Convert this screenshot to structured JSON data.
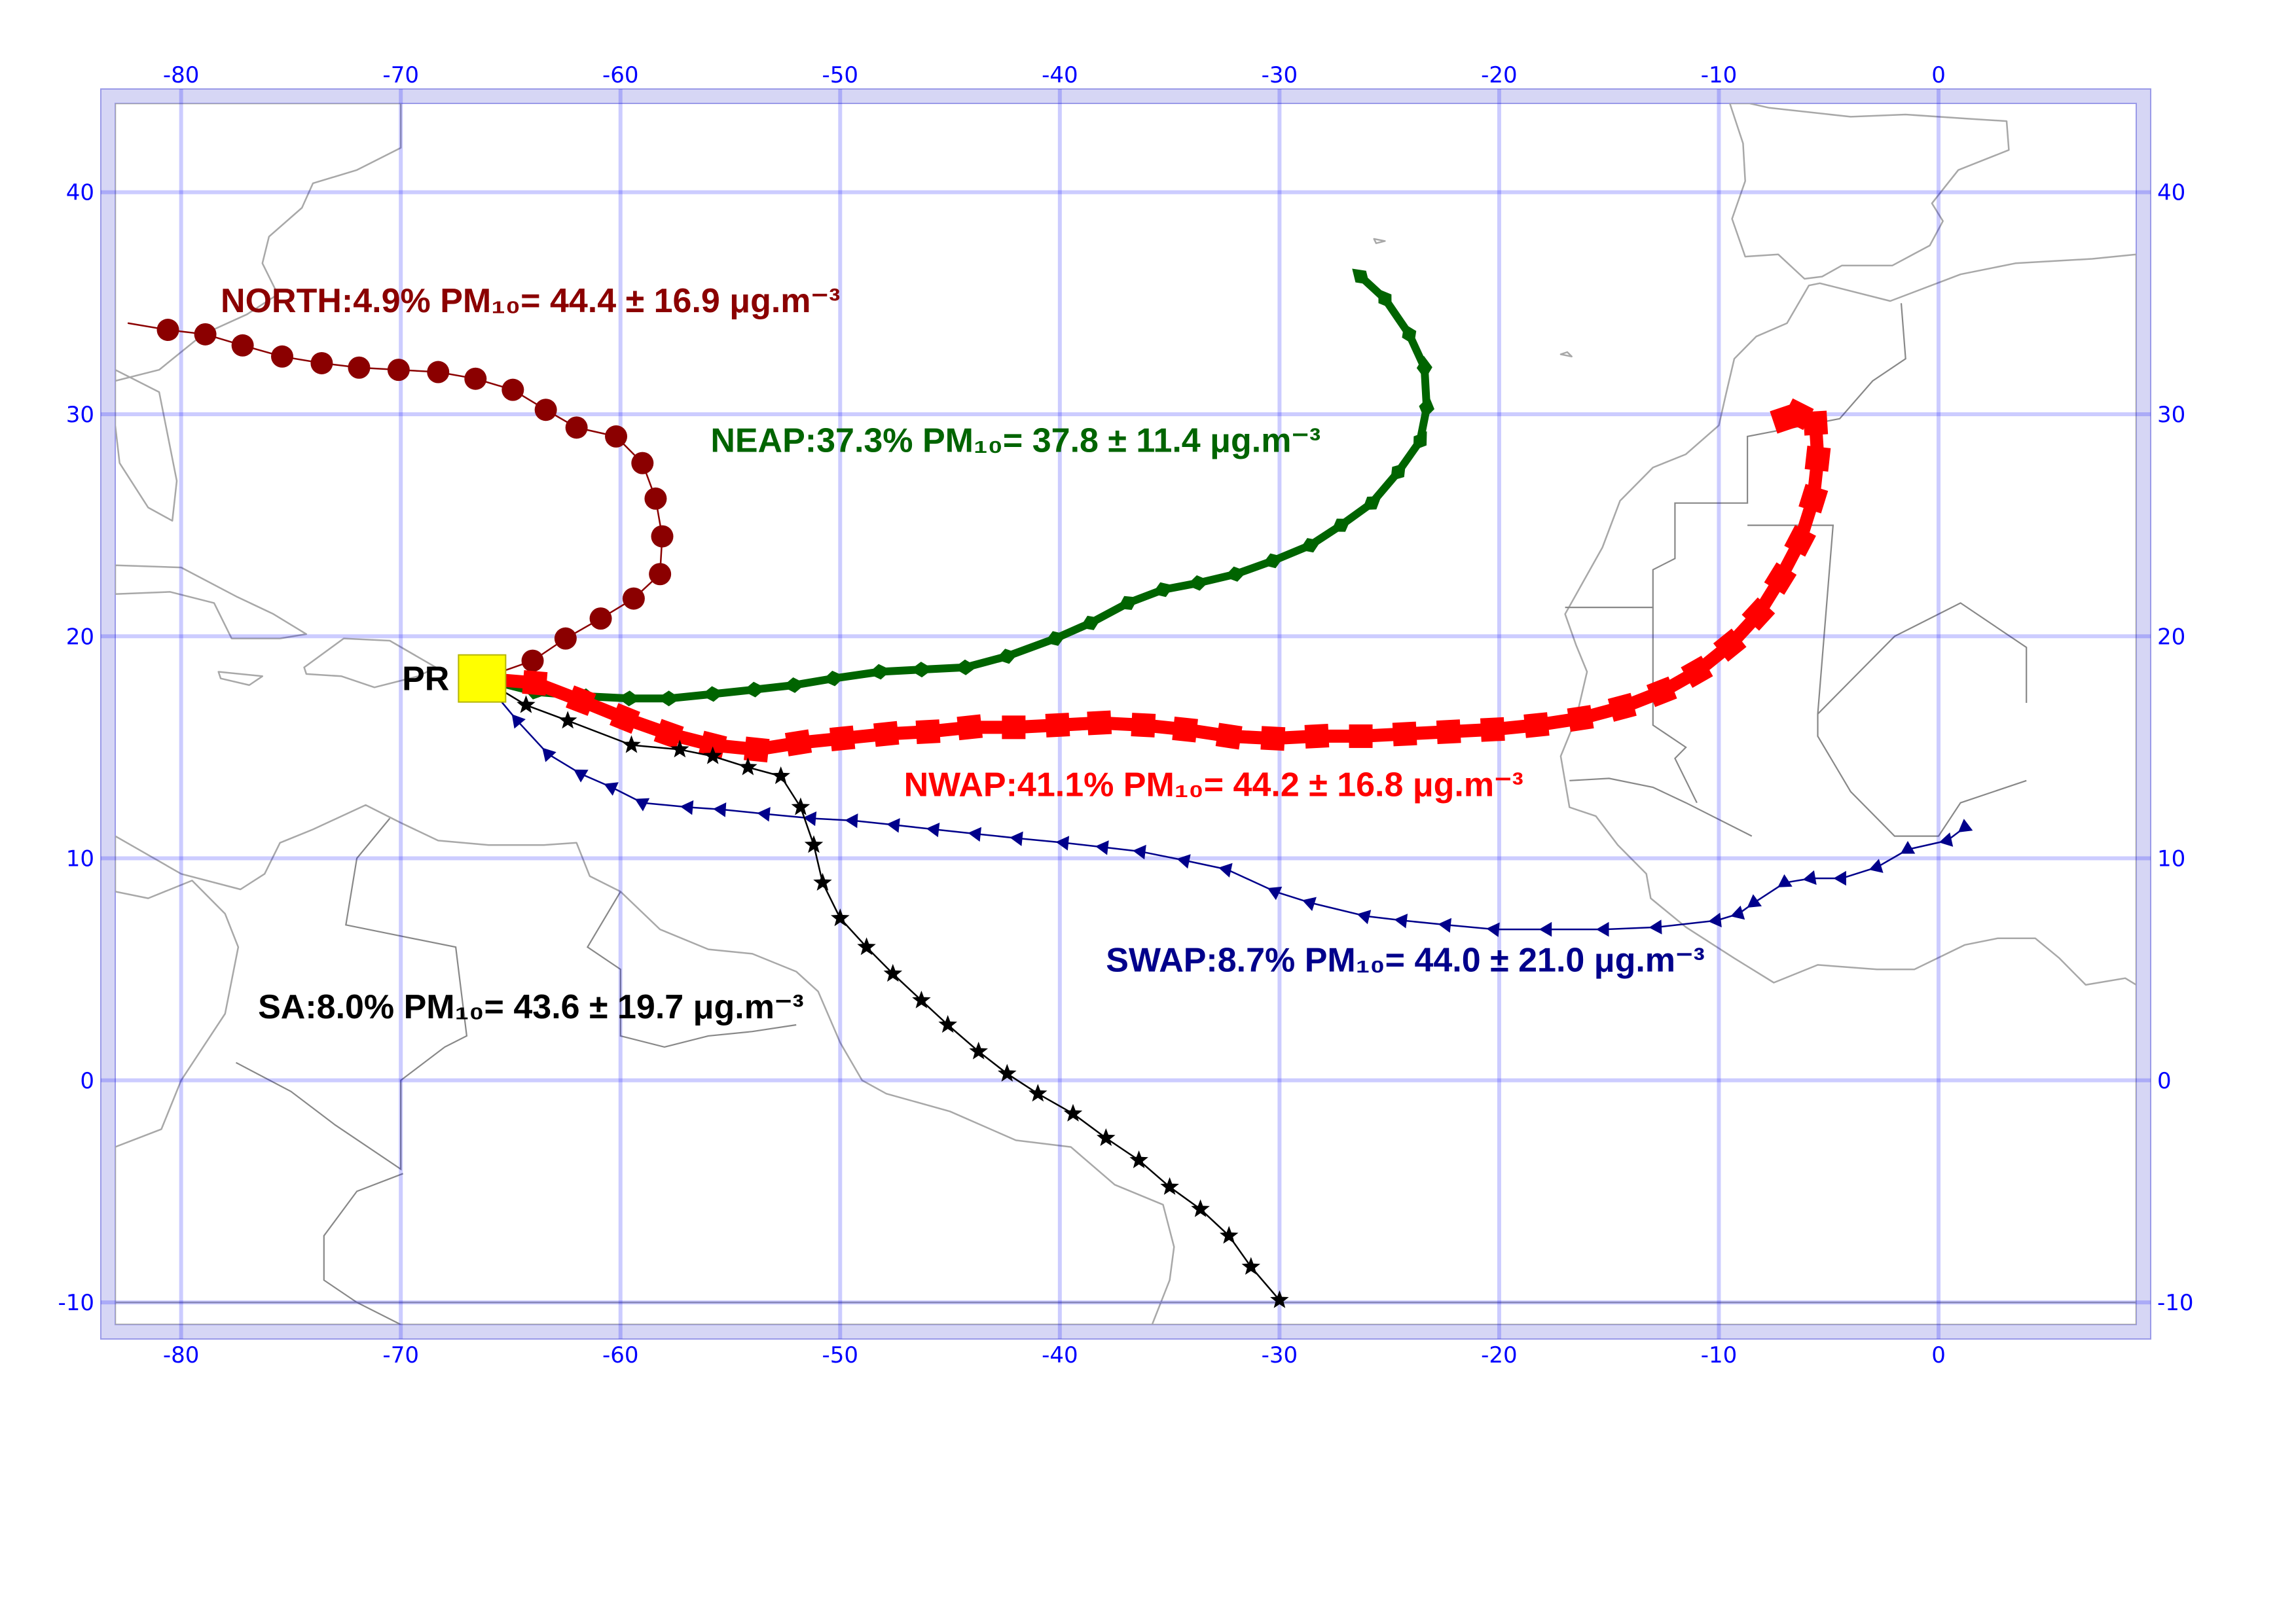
{
  "map": {
    "lon_range": [
      -83,
      9
    ],
    "lat_range": [
      -11,
      44
    ],
    "grid": true,
    "lon_ticks": [
      -80,
      -70,
      -60,
      -50,
      -40,
      -30,
      -20,
      -10,
      0
    ],
    "lat_ticks": [
      40,
      30,
      20,
      10,
      0,
      -10
    ],
    "lon_tick_labels": [
      "-80",
      "-70",
      "-60",
      "-50",
      "-40",
      "-30",
      "-20",
      "-10",
      "0"
    ],
    "lat_tick_labels": [
      "40",
      "30",
      "20",
      "10",
      "0",
      "-10"
    ]
  },
  "site": {
    "label": "PR",
    "lon": -66.3,
    "lat": 18.1,
    "color": "#ffff00"
  },
  "trajectories": [
    {
      "id": "north",
      "label": "NORTH:4.9% PM₁₀= 44.4 ± 16.9 μg.m⁻³",
      "label_lon": -78.2,
      "label_lat": 34.6,
      "color": "#8b0000",
      "marker": "circle",
      "points": [
        [
          -82.4,
          34.1
        ],
        [
          -80.6,
          33.8
        ],
        [
          -78.9,
          33.6
        ],
        [
          -77.2,
          33.1
        ],
        [
          -75.4,
          32.6
        ],
        [
          -73.6,
          32.3
        ],
        [
          -71.9,
          32.1
        ],
        [
          -70.1,
          32.0
        ],
        [
          -68.3,
          31.9
        ],
        [
          -66.6,
          31.6
        ],
        [
          -64.9,
          31.1
        ],
        [
          -63.4,
          30.2
        ],
        [
          -62.0,
          29.4
        ],
        [
          -60.2,
          29.0
        ],
        [
          -59.0,
          27.8
        ],
        [
          -58.4,
          26.2
        ],
        [
          -58.1,
          24.5
        ],
        [
          -58.2,
          22.8
        ],
        [
          -59.4,
          21.7
        ],
        [
          -60.9,
          20.8
        ],
        [
          -62.5,
          19.9
        ],
        [
          -64.0,
          18.9
        ],
        [
          -66.3,
          18.1
        ]
      ]
    },
    {
      "id": "neap",
      "label": "NEAP:37.3% PM₁₀= 37.8 ± 11.4 μg.m⁻³",
      "label_lon": -55.9,
      "label_lat": 28.3,
      "color": "#006400",
      "marker": "diamond",
      "points": [
        [
          -66.3,
          18.1
        ],
        [
          -63.9,
          17.5
        ],
        [
          -61.6,
          17.3
        ],
        [
          -59.6,
          17.2
        ],
        [
          -57.8,
          17.2
        ],
        [
          -55.8,
          17.4
        ],
        [
          -53.9,
          17.6
        ],
        [
          -52.1,
          17.8
        ],
        [
          -50.3,
          18.1
        ],
        [
          -48.2,
          18.4
        ],
        [
          -46.3,
          18.5
        ],
        [
          -44.3,
          18.6
        ],
        [
          -42.4,
          19.1
        ],
        [
          -40.2,
          19.9
        ],
        [
          -38.6,
          20.6
        ],
        [
          -36.9,
          21.5
        ],
        [
          -35.3,
          22.1
        ],
        [
          -33.7,
          22.4
        ],
        [
          -32.0,
          22.8
        ],
        [
          -30.3,
          23.4
        ],
        [
          -28.6,
          24.1
        ],
        [
          -27.2,
          25.0
        ],
        [
          -25.8,
          26.0
        ],
        [
          -24.6,
          27.4
        ],
        [
          -23.6,
          28.8
        ],
        [
          -23.3,
          30.3
        ],
        [
          -23.4,
          32.1
        ],
        [
          -24.1,
          33.6
        ],
        [
          -25.2,
          35.2
        ],
        [
          -26.3,
          36.2
        ]
      ]
    },
    {
      "id": "nwap",
      "label": "NWAP:41.1% PM₁₀= 44.2 ± 16.8 μg.m⁻³",
      "label_lon": -47.1,
      "label_lat": 12.8,
      "color": "#ff0000",
      "marker": "square",
      "points": [
        [
          -66.3,
          18.1
        ],
        [
          -63.9,
          17.9
        ],
        [
          -61.8,
          17.1
        ],
        [
          -59.8,
          16.3
        ],
        [
          -57.8,
          15.6
        ],
        [
          -55.8,
          15.1
        ],
        [
          -53.8,
          14.9
        ],
        [
          -51.9,
          15.2
        ],
        [
          -49.9,
          15.4
        ],
        [
          -47.9,
          15.6
        ],
        [
          -46.0,
          15.7
        ],
        [
          -44.1,
          15.9
        ],
        [
          -42.1,
          15.9
        ],
        [
          -40.1,
          16.0
        ],
        [
          -38.2,
          16.1
        ],
        [
          -36.2,
          16.0
        ],
        [
          -34.3,
          15.8
        ],
        [
          -32.3,
          15.5
        ],
        [
          -30.3,
          15.4
        ],
        [
          -28.3,
          15.5
        ],
        [
          -26.3,
          15.5
        ],
        [
          -24.3,
          15.6
        ],
        [
          -22.3,
          15.7
        ],
        [
          -20.3,
          15.8
        ],
        [
          -18.3,
          16.0
        ],
        [
          -16.3,
          16.3
        ],
        [
          -14.4,
          16.8
        ],
        [
          -12.6,
          17.5
        ],
        [
          -11.0,
          18.4
        ],
        [
          -9.5,
          19.6
        ],
        [
          -8.2,
          21.0
        ],
        [
          -7.2,
          22.6
        ],
        [
          -6.3,
          24.3
        ],
        [
          -5.7,
          26.2
        ],
        [
          -5.5,
          28.0
        ],
        [
          -5.6,
          29.6
        ],
        [
          -6.4,
          30.0
        ],
        [
          -7.0,
          29.8
        ]
      ]
    },
    {
      "id": "swap",
      "label": "SWAP:8.7% PM₁₀= 44.0 ± 21.0 μg.m⁻³",
      "label_lon": -37.9,
      "label_lat": 4.9,
      "color": "#00008b",
      "marker": "triangle",
      "points": [
        [
          -66.3,
          18.1
        ],
        [
          -64.7,
          16.2
        ],
        [
          -63.3,
          14.7
        ],
        [
          -61.8,
          13.8
        ],
        [
          -60.4,
          13.2
        ],
        [
          -59.0,
          12.5
        ],
        [
          -56.9,
          12.3
        ],
        [
          -55.4,
          12.2
        ],
        [
          -53.4,
          12.0
        ],
        [
          -51.3,
          11.8
        ],
        [
          -49.4,
          11.7
        ],
        [
          -47.5,
          11.5
        ],
        [
          -45.7,
          11.3
        ],
        [
          -43.8,
          11.1
        ],
        [
          -41.9,
          10.9
        ],
        [
          -39.8,
          10.7
        ],
        [
          -38.0,
          10.5
        ],
        [
          -36.3,
          10.3
        ],
        [
          -34.3,
          9.9
        ],
        [
          -32.4,
          9.5
        ],
        [
          -30.2,
          8.5
        ],
        [
          -28.6,
          8.0
        ],
        [
          -26.1,
          7.4
        ],
        [
          -24.4,
          7.2
        ],
        [
          -22.4,
          7.0
        ],
        [
          -20.2,
          6.8
        ],
        [
          -17.8,
          6.8
        ],
        [
          -15.2,
          6.8
        ],
        [
          -12.8,
          6.9
        ],
        [
          -10.1,
          7.2
        ],
        [
          -9.1,
          7.5
        ],
        [
          -8.4,
          8.0
        ],
        [
          -7.0,
          8.9
        ],
        [
          -5.8,
          9.1
        ],
        [
          -4.4,
          9.1
        ],
        [
          -2.8,
          9.6
        ],
        [
          -1.4,
          10.4
        ],
        [
          0.4,
          10.8
        ],
        [
          1.2,
          11.4
        ]
      ]
    },
    {
      "id": "sa",
      "label": "SA:8.0% PM₁₀= 43.6 ± 19.7 μg.m⁻³",
      "label_lon": -76.5,
      "label_lat": 2.8,
      "color": "#000000",
      "marker": "star",
      "points": [
        [
          -66.3,
          18.1
        ],
        [
          -64.3,
          16.9
        ],
        [
          -62.4,
          16.2
        ],
        [
          -59.5,
          15.1
        ],
        [
          -57.3,
          14.9
        ],
        [
          -55.8,
          14.6
        ],
        [
          -54.2,
          14.1
        ],
        [
          -52.7,
          13.7
        ],
        [
          -51.8,
          12.3
        ],
        [
          -51.2,
          10.6
        ],
        [
          -50.8,
          8.9
        ],
        [
          -50.0,
          7.3
        ],
        [
          -48.8,
          6.0
        ],
        [
          -47.6,
          4.8
        ],
        [
          -46.3,
          3.6
        ],
        [
          -45.1,
          2.5
        ],
        [
          -43.7,
          1.3
        ],
        [
          -42.4,
          0.3
        ],
        [
          -41.0,
          -0.6
        ],
        [
          -39.4,
          -1.5
        ],
        [
          -37.9,
          -2.6
        ],
        [
          -36.4,
          -3.6
        ],
        [
          -35.0,
          -4.8
        ],
        [
          -33.6,
          -5.8
        ],
        [
          -32.3,
          -7.0
        ],
        [
          -31.3,
          -8.4
        ],
        [
          -30.0,
          -9.9
        ]
      ]
    }
  ]
}
